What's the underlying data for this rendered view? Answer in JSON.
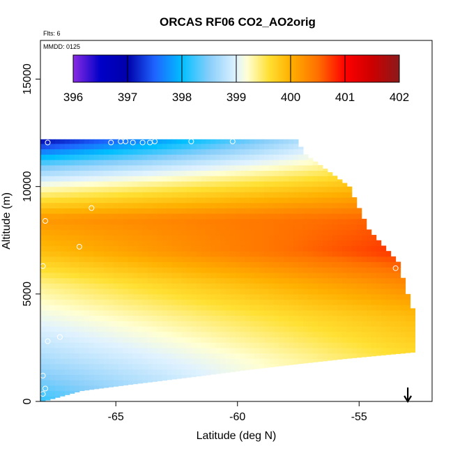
{
  "chart_data": {
    "type": "heatmap",
    "title": "ORCAS RF06 CO2_AO2orig",
    "annotation_flts": "Flts: 6",
    "annotation_mmdd": "MMDD: 0125",
    "xlabel": "Latitude (deg N)",
    "ylabel": "Altitude (m)",
    "xlim": [
      -68.1,
      -52.0
    ],
    "ylim": [
      0,
      16800
    ],
    "x_ticks": [
      -65,
      -60,
      -55
    ],
    "x_tick_labels": [
      "-65",
      "-60",
      "-55"
    ],
    "y_ticks": [
      0,
      5000,
      10000,
      15000
    ],
    "y_tick_labels": [
      "0",
      "5000",
      "10000",
      "15000"
    ],
    "colorbar": {
      "label_values": [
        396,
        397,
        398,
        399,
        400,
        401,
        402
      ],
      "label_texts": [
        "396",
        "397",
        "398",
        "399",
        "400",
        "401",
        "402"
      ],
      "range": [
        396,
        402
      ],
      "stops": [
        {
          "v": 396.0,
          "color": "#8a2be2"
        },
        {
          "v": 396.5,
          "color": "#0000c8"
        },
        {
          "v": 397.0,
          "color": "#0000aa"
        },
        {
          "v": 397.5,
          "color": "#1e64ff"
        },
        {
          "v": 398.0,
          "color": "#00bfff"
        },
        {
          "v": 398.5,
          "color": "#87cefa"
        },
        {
          "v": 399.0,
          "color": "#e0f2ff"
        },
        {
          "v": 399.2,
          "color": "#ffffd4"
        },
        {
          "v": 399.6,
          "color": "#ffe033"
        },
        {
          "v": 400.0,
          "color": "#ffb000"
        },
        {
          "v": 400.5,
          "color": "#ff7000"
        },
        {
          "v": 401.0,
          "color": "#ff0000"
        },
        {
          "v": 401.5,
          "color": "#cc0000"
        },
        {
          "v": 402.0,
          "color": "#8b1a1a"
        }
      ]
    },
    "curtain": {
      "lat_step": 0.2,
      "alt_step": 250,
      "lat_start": -68.1,
      "lat_end": -52.9,
      "top_profile": [
        [
          -68.1,
          12200
        ],
        [
          -57.7,
          12200
        ],
        [
          -57.3,
          11500
        ],
        [
          -55.5,
          10000
        ],
        [
          -54.7,
          8000
        ],
        [
          -53.5,
          6500
        ],
        [
          -53.1,
          5000
        ],
        [
          -52.8,
          4000
        ],
        [
          -52.3,
          2500
        ],
        [
          -52.3,
          2000
        ]
      ],
      "bottom_profile": [
        [
          -68.1,
          0
        ],
        [
          -66.5,
          500
        ],
        [
          -64.8,
          750
        ],
        [
          -63.0,
          1000
        ],
        [
          -61.2,
          1250
        ],
        [
          -59.5,
          1500
        ],
        [
          -57.6,
          1750
        ],
        [
          -55.6,
          2000
        ],
        [
          -52.8,
          2300
        ]
      ],
      "field_control_points": {
        "alt_m": [
          0,
          2000,
          4000,
          5500,
          7000,
          8500,
          10000,
          11000,
          12200
        ],
        "south_lat_-68": [
          398.2,
          398.7,
          399.1,
          399.4,
          399.9,
          400.2,
          399.2,
          398.4,
          397.0
        ],
        "north_lat_-53": [
          399.6,
          399.6,
          399.9,
          400.3,
          400.8,
          400.6,
          400.0,
          399.6,
          399.4
        ]
      }
    },
    "flight_points": [
      {
        "lat": -67.8,
        "alt": 12050
      },
      {
        "lat": -65.2,
        "alt": 12050
      },
      {
        "lat": -64.8,
        "alt": 12100
      },
      {
        "lat": -64.6,
        "alt": 12100
      },
      {
        "lat": -64.3,
        "alt": 12050
      },
      {
        "lat": -63.9,
        "alt": 12050
      },
      {
        "lat": -63.6,
        "alt": 12050
      },
      {
        "lat": -63.4,
        "alt": 12100
      },
      {
        "lat": -61.9,
        "alt": 12100
      },
      {
        "lat": -60.2,
        "alt": 12100
      },
      {
        "lat": -66.0,
        "alt": 9000
      },
      {
        "lat": -67.9,
        "alt": 8400
      },
      {
        "lat": -66.5,
        "alt": 7200
      },
      {
        "lat": -68.0,
        "alt": 6300
      },
      {
        "lat": -67.8,
        "alt": 2800
      },
      {
        "lat": -67.3,
        "alt": 3000
      },
      {
        "lat": -68.0,
        "alt": 1200
      },
      {
        "lat": -67.9,
        "alt": 600
      },
      {
        "lat": -68.0,
        "alt": 350
      },
      {
        "lat": -53.5,
        "alt": 6200
      }
    ],
    "arrow_marker": {
      "lat": -53.0,
      "description": "down-arrow"
    }
  }
}
